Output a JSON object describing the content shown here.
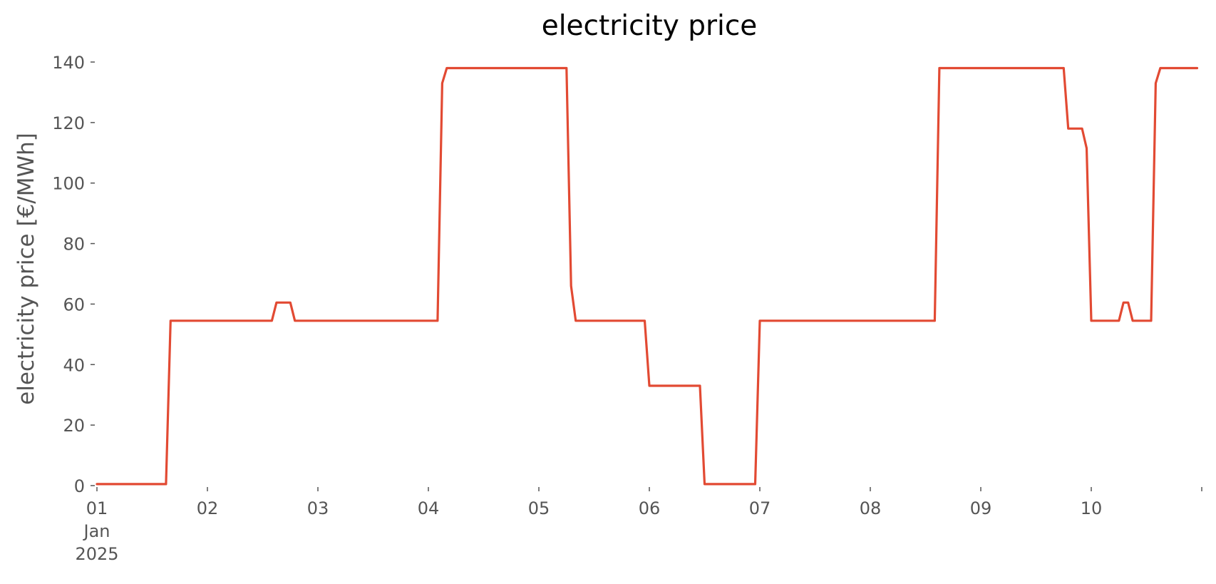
{
  "chart_data": {
    "type": "line",
    "title": "electricity price",
    "xlabel": "",
    "ylabel": "electricity price [€/MWh]",
    "ylim": [
      0,
      140
    ],
    "xlim": [
      "2025-01-01T00:00",
      "2025-01-10T23:00"
    ],
    "grid": false,
    "legend": "none",
    "yticks": [
      {
        "value": 0,
        "label": "0"
      },
      {
        "value": 20,
        "label": "20"
      },
      {
        "value": 40,
        "label": "40"
      },
      {
        "value": 60,
        "label": "60"
      },
      {
        "value": 80,
        "label": "80"
      },
      {
        "value": 100,
        "label": "100"
      },
      {
        "value": 120,
        "label": "120"
      },
      {
        "value": 140,
        "label": "140"
      }
    ],
    "xticks": [
      {
        "value": "2025-01-01T00:00",
        "label": "01",
        "sublabel": "Jan",
        "sublabel2": "2025"
      },
      {
        "value": "2025-01-02T00:00",
        "label": "02"
      },
      {
        "value": "2025-01-03T00:00",
        "label": "03"
      },
      {
        "value": "2025-01-04T00:00",
        "label": "04"
      },
      {
        "value": "2025-01-05T00:00",
        "label": "05"
      },
      {
        "value": "2025-01-06T00:00",
        "label": "06"
      },
      {
        "value": "2025-01-07T00:00",
        "label": "07"
      },
      {
        "value": "2025-01-08T00:00",
        "label": "08"
      },
      {
        "value": "2025-01-09T00:00",
        "label": "09"
      },
      {
        "value": "2025-01-10T00:00",
        "label": "10"
      },
      {
        "value": "2025-01-11T00:00",
        "label": ""
      }
    ],
    "series": [
      {
        "color": "#E24A33",
        "points": [
          {
            "x": "2025-01-01T00:00",
            "y": 0.5
          },
          {
            "x": "2025-01-01T15:00",
            "y": 0.5
          },
          {
            "x": "2025-01-01T16:00",
            "y": 54.5
          },
          {
            "x": "2025-01-02T14:00",
            "y": 54.5
          },
          {
            "x": "2025-01-02T15:00",
            "y": 60.5
          },
          {
            "x": "2025-01-02T18:00",
            "y": 60.5
          },
          {
            "x": "2025-01-02T19:00",
            "y": 54.5
          },
          {
            "x": "2025-01-04T02:00",
            "y": 54.5
          },
          {
            "x": "2025-01-04T03:00",
            "y": 133
          },
          {
            "x": "2025-01-04T04:00",
            "y": 138
          },
          {
            "x": "2025-01-05T06:00",
            "y": 138
          },
          {
            "x": "2025-01-05T07:00",
            "y": 66
          },
          {
            "x": "2025-01-05T08:00",
            "y": 54.5
          },
          {
            "x": "2025-01-05T23:00",
            "y": 54.5
          },
          {
            "x": "2025-01-06T00:00",
            "y": 33
          },
          {
            "x": "2025-01-06T11:00",
            "y": 33
          },
          {
            "x": "2025-01-06T12:00",
            "y": 0.5
          },
          {
            "x": "2025-01-06T23:00",
            "y": 0.5
          },
          {
            "x": "2025-01-07T00:00",
            "y": 54.5
          },
          {
            "x": "2025-01-08T14:00",
            "y": 54.5
          },
          {
            "x": "2025-01-08T15:00",
            "y": 138
          },
          {
            "x": "2025-01-09T18:00",
            "y": 138
          },
          {
            "x": "2025-01-09T19:00",
            "y": 118
          },
          {
            "x": "2025-01-09T22:00",
            "y": 118
          },
          {
            "x": "2025-01-09T23:00",
            "y": 111.5
          },
          {
            "x": "2025-01-10T00:00",
            "y": 54.5
          },
          {
            "x": "2025-01-10T06:00",
            "y": 54.5
          },
          {
            "x": "2025-01-10T07:00",
            "y": 60.5
          },
          {
            "x": "2025-01-10T08:00",
            "y": 60.5
          },
          {
            "x": "2025-01-10T09:00",
            "y": 54.5
          },
          {
            "x": "2025-01-10T13:00",
            "y": 54.5
          },
          {
            "x": "2025-01-10T14:00",
            "y": 133
          },
          {
            "x": "2025-01-10T15:00",
            "y": 138
          },
          {
            "x": "2025-01-10T23:00",
            "y": 138
          }
        ]
      }
    ]
  }
}
